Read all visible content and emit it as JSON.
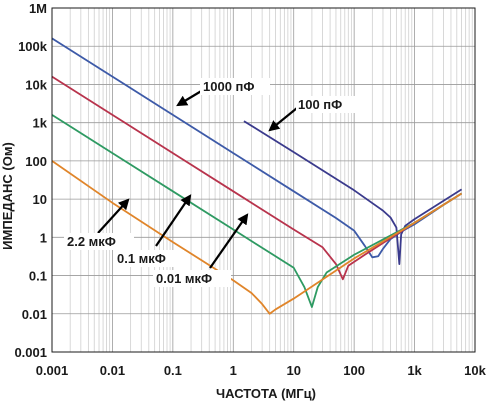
{
  "chart_data": {
    "type": "line",
    "xlabel": "ЧАСТОТА (МГц)",
    "ylabel": "ИМПЕДАНС (Ом)",
    "x_scale": "log",
    "y_scale": "log",
    "xlim": [
      0.001,
      10000
    ],
    "ylim": [
      0.001,
      1000000
    ],
    "x_ticks": [
      "0.001",
      "0.01",
      "0.1",
      "1",
      "10",
      "100",
      "1k",
      "10k"
    ],
    "y_ticks": [
      "0.001",
      "0.01",
      "0.1",
      "1",
      "10",
      "100",
      "1k",
      "10k",
      "100k",
      "1M"
    ],
    "grid": true,
    "series": [
      {
        "name": "1000 пФ",
        "color": "#3d5aa8",
        "x": [
          0.001,
          0.01,
          0.1,
          1,
          10,
          50,
          100,
          150,
          200,
          250,
          300,
          400,
          600,
          1000,
          3000,
          6000
        ],
        "y": [
          160000,
          16000,
          1600,
          160,
          16,
          3.2,
          1.5,
          0.6,
          0.3,
          0.32,
          0.5,
          0.9,
          1.4,
          2.2,
          7,
          14
        ]
      },
      {
        "name": "100 пФ",
        "color": "#3a3a8c",
        "x": [
          1.5,
          10,
          100,
          300,
          400,
          500,
          560,
          600,
          700,
          1000,
          3000,
          6000
        ],
        "y": [
          1100,
          170,
          17,
          5,
          3.3,
          1.8,
          0.2,
          1.2,
          2,
          3,
          9,
          18
        ]
      },
      {
        "name": "0.01 мкФ",
        "color": "#b8334c",
        "x": [
          0.001,
          0.01,
          0.1,
          1,
          10,
          30,
          50,
          65,
          80,
          150,
          1000,
          6000
        ],
        "y": [
          16000,
          1600,
          160,
          16,
          1.6,
          0.55,
          0.2,
          0.08,
          0.18,
          0.35,
          2.4,
          14
        ]
      },
      {
        "name": "0.1 мкФ",
        "color": "#2e9a62",
        "x": [
          0.001,
          0.01,
          0.1,
          1,
          5,
          10,
          15,
          20,
          25,
          35,
          100,
          1000,
          6000
        ],
        "y": [
          1600,
          160,
          16,
          1.6,
          0.32,
          0.16,
          0.05,
          0.015,
          0.05,
          0.12,
          0.35,
          2.4,
          14
        ]
      },
      {
        "name": "2.2 мкФ",
        "color": "#e0852a",
        "x": [
          0.001,
          0.01,
          0.1,
          1,
          2,
          3,
          4,
          5,
          10,
          100,
          1000,
          6000
        ],
        "y": [
          100,
          8,
          0.75,
          0.075,
          0.035,
          0.018,
          0.01,
          0.013,
          0.025,
          0.28,
          2.4,
          14
        ]
      }
    ]
  }
}
